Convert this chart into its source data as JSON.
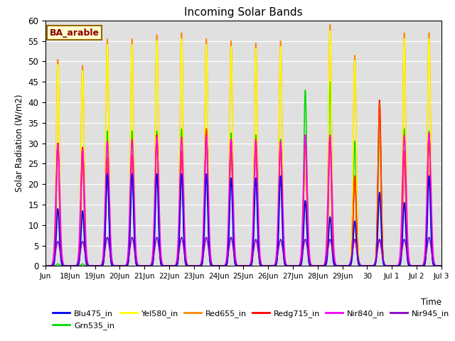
{
  "title": "Incoming Solar Bands",
  "xlabel": "Time",
  "ylabel": "Solar Radiation (W/m2)",
  "annotation": "BA_arable",
  "ylim": [
    0,
    60
  ],
  "background_color": "#e0e0e0",
  "fig_color": "#ffffff",
  "series": {
    "Blu475_in": {
      "color": "#0000ee",
      "lw": 1.2
    },
    "Grn535_in": {
      "color": "#00dd00",
      "lw": 1.2
    },
    "Yel580_in": {
      "color": "#ffff00",
      "lw": 1.2
    },
    "Red655_in": {
      "color": "#ff8800",
      "lw": 1.2
    },
    "Redg715_in": {
      "color": "#ff0000",
      "lw": 1.2
    },
    "Nir840_in": {
      "color": "#ff00ff",
      "lw": 1.2
    },
    "Nir945_in": {
      "color": "#8800cc",
      "lw": 1.2
    }
  },
  "xtick_labels": [
    "Jun",
    "18Jun",
    "19Jun",
    "20Jun",
    "21Jun",
    "22Jun",
    "23Jun",
    "24Jun",
    "25Jun",
    "26Jun",
    "27Jun",
    "28Jun",
    "29Jun",
    "30",
    "Jul 1",
    "Jul 2",
    "Jul 3"
  ],
  "ytick_labels": [
    0,
    5,
    10,
    15,
    20,
    25,
    30,
    35,
    40,
    45,
    50,
    55,
    60
  ],
  "num_days": 16,
  "day_peaks_orange": [
    50.5,
    49.0,
    55.5,
    55.5,
    56.5,
    57.0,
    55.5,
    55.0,
    54.5,
    55.0,
    32.0,
    59.0,
    51.5,
    36.0,
    57.0,
    57.0
  ],
  "day_peaks_green": [
    0.5,
    0.5,
    33.0,
    33.0,
    33.0,
    33.5,
    33.5,
    32.5,
    32.0,
    31.0,
    43.0,
    45.0,
    30.5,
    33.5,
    33.5,
    33.0
  ],
  "day_peaks_red": [
    30.0,
    29.0,
    26.5,
    27.0,
    32.0,
    28.0,
    33.5,
    31.0,
    30.5,
    30.0,
    32.0,
    31.5,
    22.0,
    40.5,
    28.0,
    32.5
  ],
  "day_peaks_crimson": [
    30.0,
    26.5,
    26.5,
    27.0,
    31.0,
    27.5,
    33.5,
    30.5,
    30.0,
    30.0,
    30.5,
    31.0,
    22.0,
    40.0,
    27.5,
    32.0
  ],
  "day_peaks_magenta": [
    30.0,
    28.5,
    30.5,
    31.0,
    31.5,
    31.5,
    32.0,
    31.0,
    31.0,
    30.5,
    32.0,
    32.0,
    6.5,
    6.5,
    32.0,
    32.5
  ],
  "day_peaks_blue": [
    14.0,
    13.5,
    22.5,
    22.5,
    22.5,
    22.5,
    22.5,
    21.5,
    21.5,
    22.0,
    16.0,
    12.0,
    11.0,
    18.0,
    15.5,
    22.0
  ],
  "day_peaks_purple": [
    6.0,
    6.0,
    7.0,
    7.0,
    7.0,
    7.0,
    7.0,
    7.0,
    6.5,
    6.5,
    6.5,
    6.5,
    6.5,
    6.5,
    6.5,
    7.0
  ],
  "sigma": 0.06,
  "pts_per_day": 300
}
